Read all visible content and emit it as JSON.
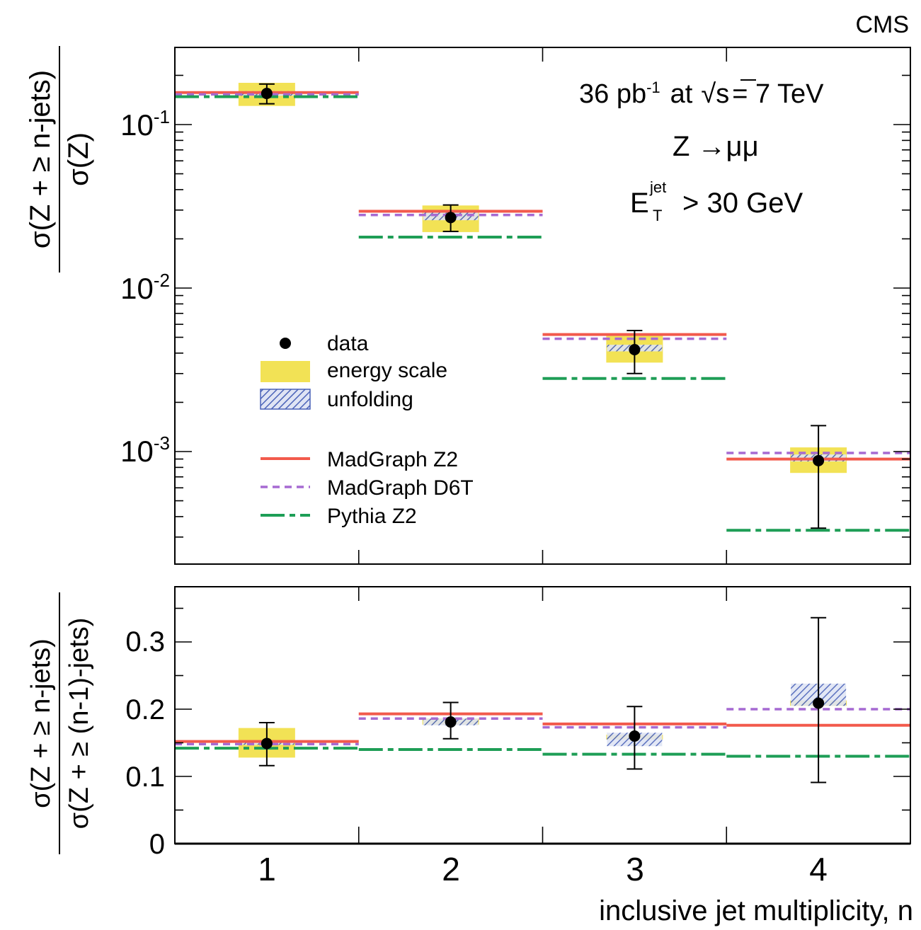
{
  "chart_data": [
    {
      "type": "scatter",
      "experiment_label": "CMS",
      "annotations": {
        "lumi_value": "36 pb",
        "lumi_exp": "-1",
        "at_label": "at",
        "sqrt_symbol": "√",
        "s_label": "s",
        "energy_label": "= 7 TeV",
        "channel_label": "Z →μμ",
        "cut_E": "E",
        "cut_sup": "jet",
        "cut_sub": "T",
        "cut_value": "> 30 GeV"
      },
      "ylabel_numerator": "σ(Z + ≥ n-jets)",
      "ylabel_denominator": "σ(Z)",
      "yscale": "log",
      "ylim": [
        0.00022,
        0.3
      ],
      "ytick_labels": [
        {
          "value": 0.1,
          "base": "10",
          "exp": "-1"
        },
        {
          "value": 0.01,
          "base": "10",
          "exp": "-2"
        },
        {
          "value": 0.001,
          "base": "10",
          "exp": "-3"
        }
      ],
      "x_bins": [
        1,
        2,
        3,
        4
      ],
      "data": {
        "name": "data",
        "values": [
          0.155,
          0.027,
          0.0042,
          0.00088
        ],
        "err_low": [
          0.021,
          0.0048,
          0.0012,
          0.00054
        ],
        "err_high": [
          0.022,
          0.0052,
          0.0013,
          0.00056
        ],
        "energy_scale_band": [
          [
            0.13,
            0.18
          ],
          [
            0.022,
            0.032
          ],
          [
            0.0035,
            0.0051
          ],
          [
            0.00074,
            0.00106
          ]
        ],
        "unfolding_band": [
          [
            0.15,
            0.16
          ],
          [
            0.026,
            0.029
          ],
          [
            0.0041,
            0.0045
          ],
          [
            0.00087,
            0.00096
          ]
        ]
      },
      "series": [
        {
          "name": "MadGraph Z2",
          "values": [
            0.157,
            0.0295,
            0.0052,
            0.0009
          ]
        },
        {
          "name": "MadGraph D6T",
          "values": [
            0.153,
            0.028,
            0.0049,
            0.00098
          ]
        },
        {
          "name": "Pythia Z2",
          "values": [
            0.148,
            0.0205,
            0.0028,
            0.00033
          ]
        }
      ],
      "legend": [
        {
          "label": "data",
          "symbol": "marker"
        },
        {
          "label": "energy scale",
          "symbol": "yellow-box"
        },
        {
          "label": "unfolding",
          "symbol": "hatched-box"
        },
        {
          "label": "MadGraph Z2",
          "symbol": "solid-line"
        },
        {
          "label": "MadGraph D6T",
          "symbol": "dashed-line"
        },
        {
          "label": "Pythia Z2",
          "symbol": "dashdot-line"
        }
      ],
      "legend_placement": "left"
    },
    {
      "type": "scatter",
      "ylabel_numerator": "σ(Z + ≥ n-jets)",
      "ylabel_denominator": "σ(Z + ≥ (n-1)-jets)",
      "xlabel": "inclusive jet multiplicity, n",
      "xtick_labels": [
        "1",
        "2",
        "3",
        "4"
      ],
      "ylim": [
        0,
        0.38
      ],
      "ytick_labels": [
        "0",
        "0.1",
        "0.2",
        "0.3"
      ],
      "ytick_values": [
        0,
        0.1,
        0.2,
        0.3
      ],
      "x_bins": [
        1,
        2,
        3,
        4
      ],
      "data": {
        "name": "data",
        "values": [
          0.149,
          0.181,
          0.16,
          0.209
        ],
        "err_low": [
          0.033,
          0.025,
          0.049,
          0.118
        ],
        "err_high": [
          0.031,
          0.029,
          0.044,
          0.127
        ],
        "energy_scale_band": [
          [
            0.128,
            0.172
          ],
          [
            0.177,
            0.186
          ],
          [
            0.155,
            0.162
          ],
          [
            0.205,
            0.213
          ]
        ],
        "unfolding_band": [
          [
            0.147,
            0.152
          ],
          [
            0.176,
            0.186
          ],
          [
            0.145,
            0.165
          ],
          [
            0.205,
            0.238
          ]
        ]
      },
      "series": [
        {
          "name": "MadGraph Z2",
          "values": [
            0.152,
            0.193,
            0.178,
            0.176
          ]
        },
        {
          "name": "MadGraph D6T",
          "values": [
            0.148,
            0.186,
            0.173,
            0.2
          ]
        },
        {
          "name": "Pythia Z2",
          "values": [
            0.142,
            0.14,
            0.133,
            0.13
          ]
        }
      ]
    }
  ],
  "colors": {
    "madgraph_z2": "#f25a4c",
    "madgraph_d6t": "#a66ad2",
    "pythia_z2": "#1e9e56",
    "energy_scale_fill": "#f2e255",
    "unfolding_hatch": "#4a62b8"
  }
}
